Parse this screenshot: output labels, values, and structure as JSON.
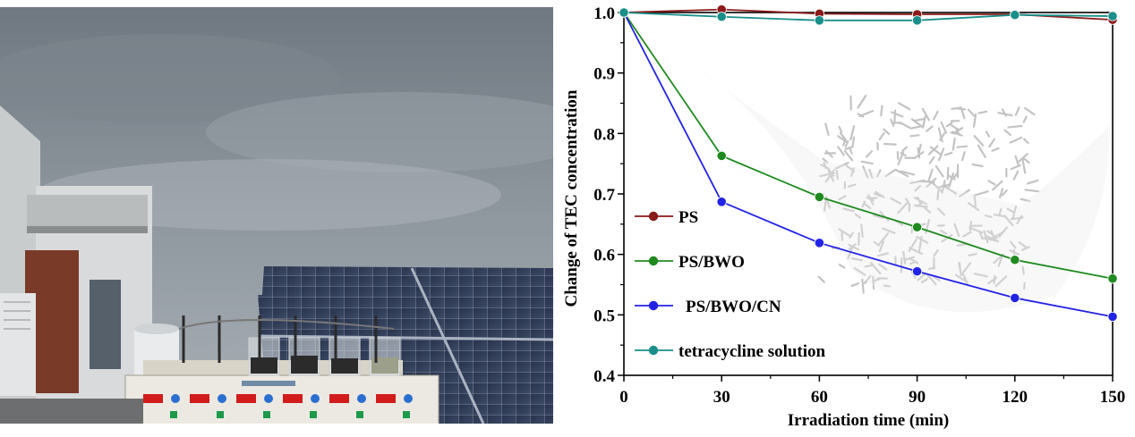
{
  "photo": {
    "alt": "Outdoor rooftop experiment: six-position magnetic stirrer with beakers next to solar panels under an overcast sky"
  },
  "chart_data": {
    "type": "line",
    "title": "",
    "xlabel": "Irradiation time (min)",
    "ylabel": "Change of TEC concentration",
    "x": [
      0,
      30,
      60,
      90,
      120,
      150
    ],
    "xticks": [
      "0",
      "30",
      "60",
      "90",
      "120",
      "150"
    ],
    "yticks": [
      "0.4",
      "0.5",
      "0.6",
      "0.7",
      "0.8",
      "0.9",
      "1.0"
    ],
    "xlim": [
      0,
      150
    ],
    "ylim": [
      0.4,
      1.0
    ],
    "legend_position": "left",
    "series": [
      {
        "name": "PS",
        "color": "#8b1a1a",
        "values": [
          1.0,
          1.005,
          0.998,
          0.997,
          0.997,
          0.988
        ]
      },
      {
        "name": "PS/BWO",
        "color": "#1f8a1f",
        "values": [
          1.0,
          0.763,
          0.695,
          0.645,
          0.591,
          0.56
        ]
      },
      {
        "name": "PS/BWO/CN",
        "color": "#2323e6",
        "values": [
          1.0,
          0.687,
          0.619,
          0.572,
          0.528,
          0.497
        ]
      },
      {
        "name": "tetracycline solution",
        "color": "#1a8f8a",
        "values": [
          1.0,
          0.993,
          0.987,
          0.987,
          0.996,
          0.994
        ]
      }
    ]
  }
}
